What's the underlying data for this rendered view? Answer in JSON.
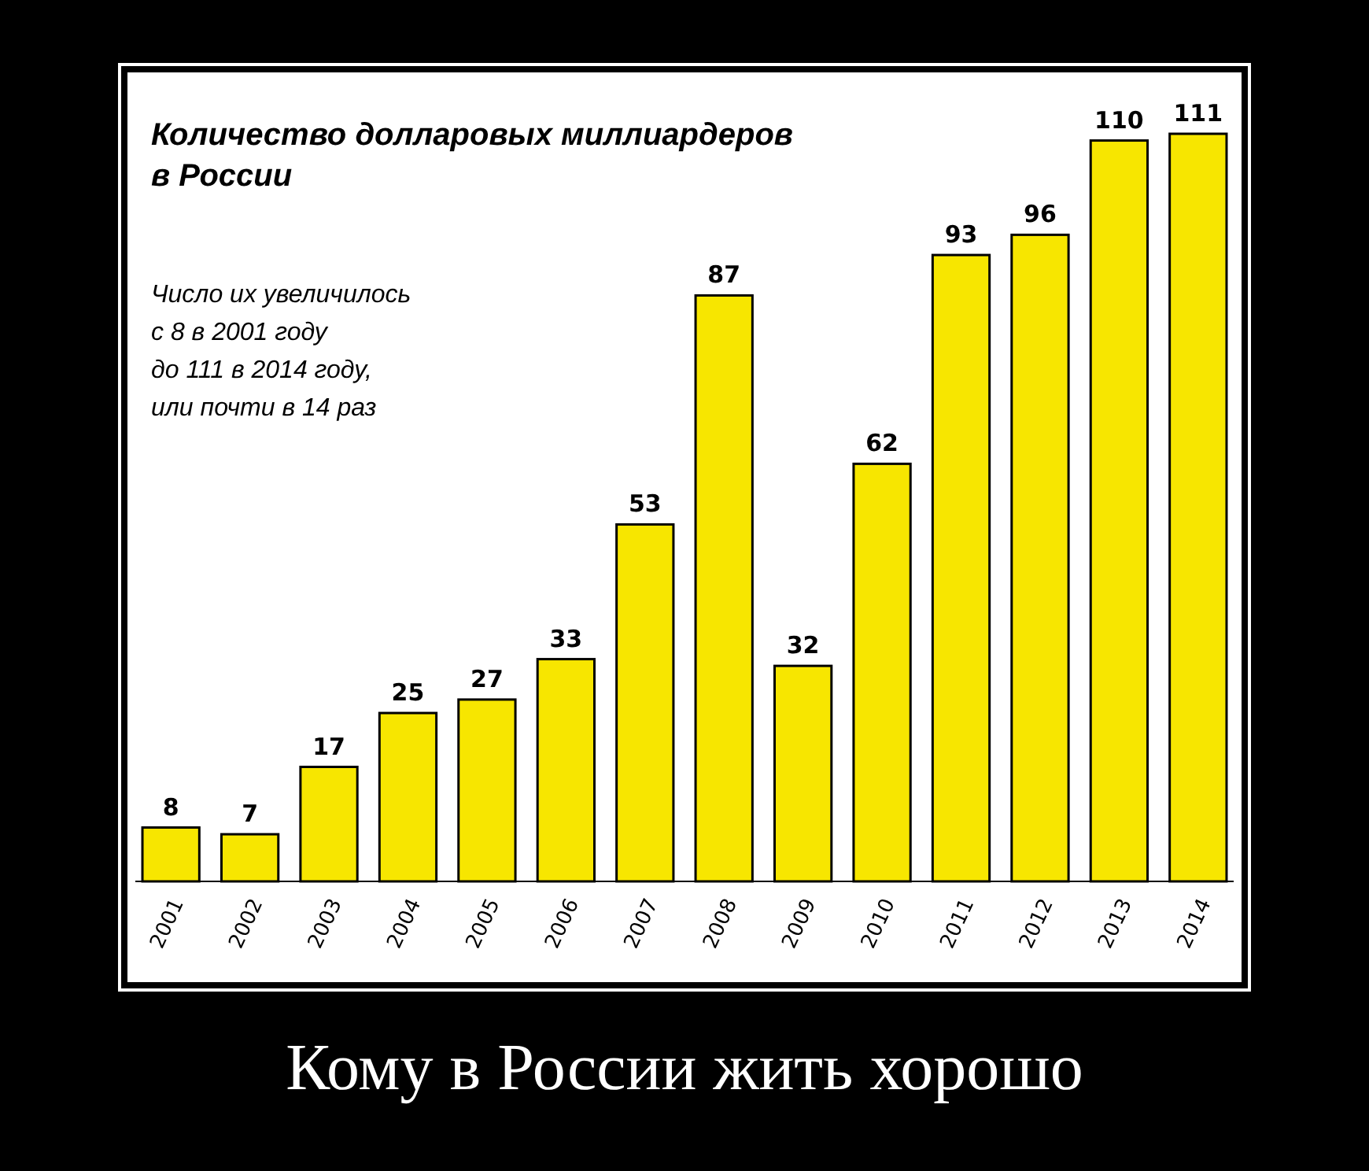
{
  "chart_data": {
    "type": "bar",
    "title": "Количество долларовых миллиардеров\nв России",
    "subtitle": "Число их увеличилось\nс 8 в 2001 году\nдо 111 в 2014 году,\nили почти в 14 раз",
    "categories": [
      "2001",
      "2002",
      "2003",
      "2004",
      "2005",
      "2006",
      "2007",
      "2008",
      "2009",
      "2010",
      "2011",
      "2012",
      "2013",
      "2014"
    ],
    "values": [
      8,
      7,
      17,
      25,
      27,
      33,
      53,
      87,
      32,
      62,
      93,
      96,
      110,
      111
    ],
    "color": "#f7e600",
    "data_labels": true,
    "annotations": [
      "Кому в России жить хорошо"
    ]
  }
}
